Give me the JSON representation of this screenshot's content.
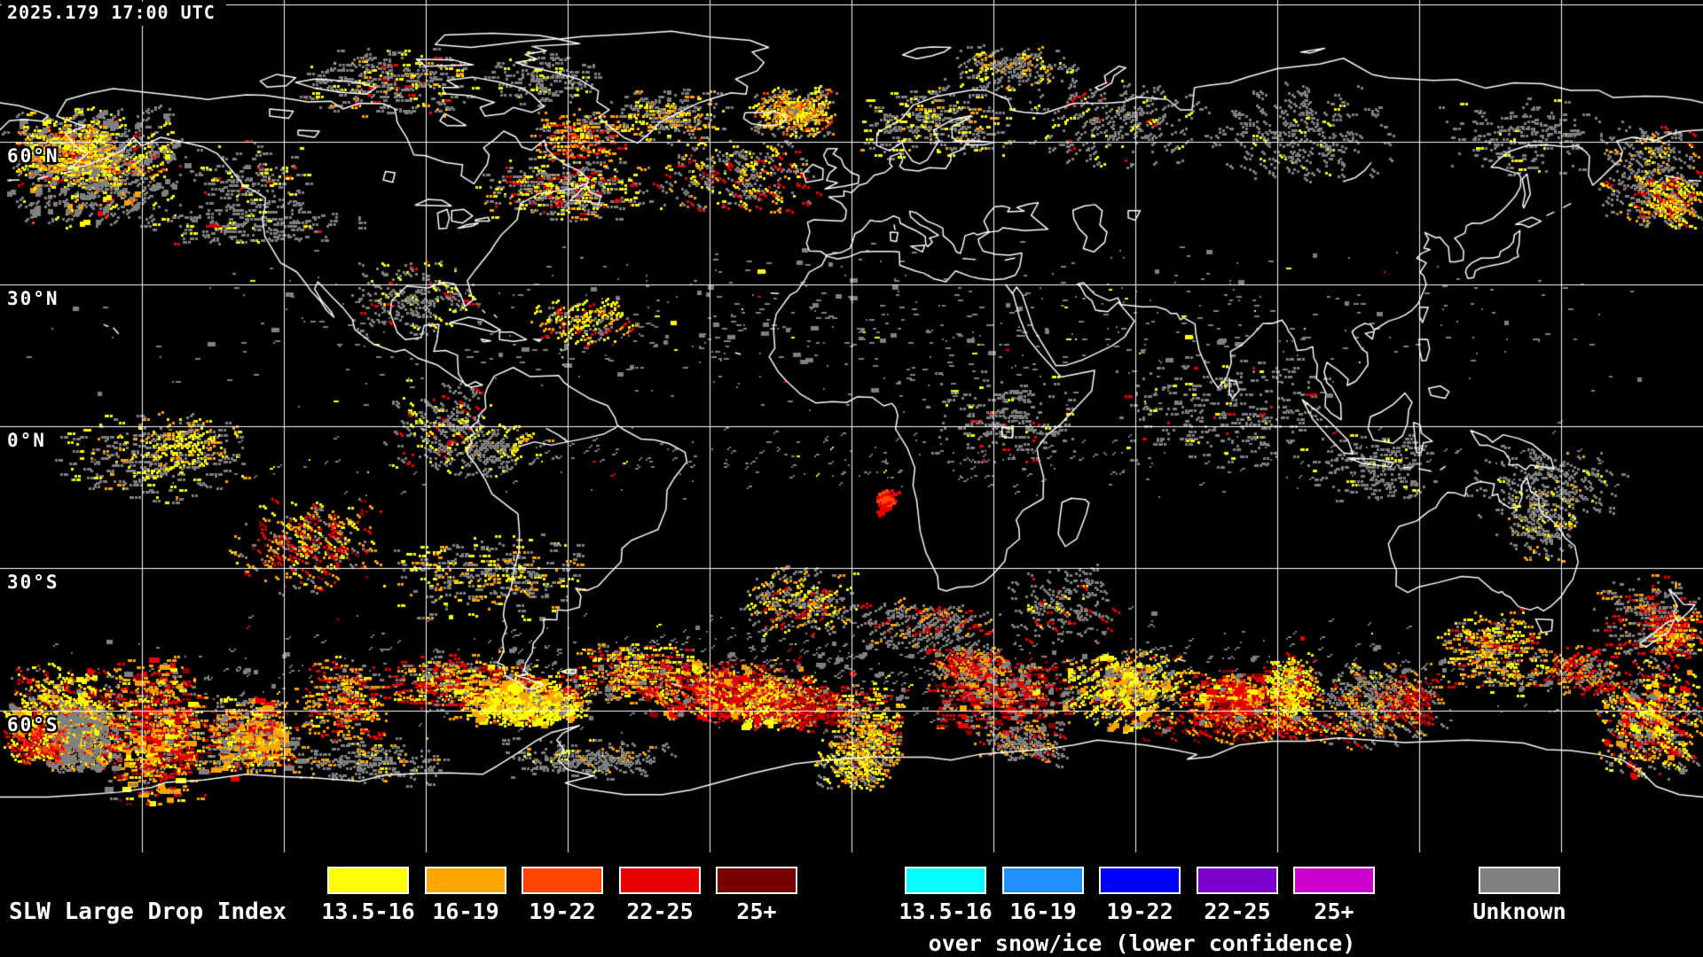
{
  "header": {
    "timestamp": "2025.179 17:00 UTC"
  },
  "map": {
    "latitude_labels": [
      "60°N",
      "30°N",
      "0°N",
      "30°S",
      "60°S"
    ]
  },
  "legend": {
    "title": "SLW Large Drop Index",
    "standard": {
      "items": [
        {
          "label": "13.5-16",
          "color": "#FFFF00"
        },
        {
          "label": "16-19",
          "color": "#FFA500"
        },
        {
          "label": "19-22",
          "color": "#FF4500"
        },
        {
          "label": "22-25",
          "color": "#E80000"
        },
        {
          "label": "25+",
          "color": "#780000"
        }
      ]
    },
    "snow_ice": {
      "caption": "over snow/ice (lower confidence)",
      "items": [
        {
          "label": "13.5-16",
          "color": "#00FFFF"
        },
        {
          "label": "16-19",
          "color": "#1E90FF"
        },
        {
          "label": "19-22",
          "color": "#0000FF"
        },
        {
          "label": "22-25",
          "color": "#7D00CC"
        },
        {
          "label": "25+",
          "color": "#CC00CC"
        }
      ]
    },
    "unknown": {
      "label": "Unknown",
      "color": "#808080"
    }
  }
}
